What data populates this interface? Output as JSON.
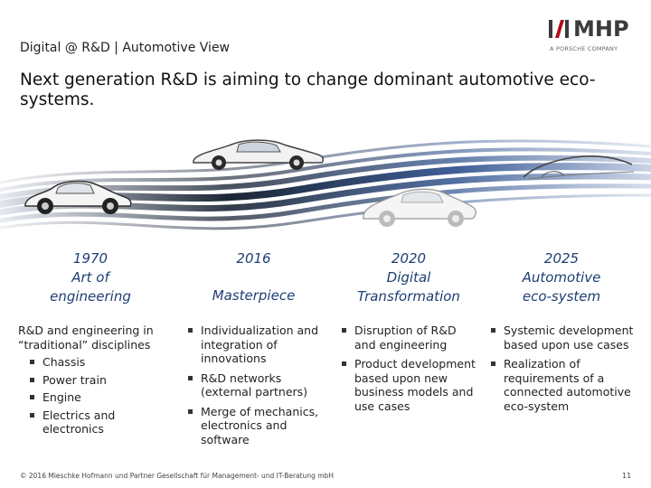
{
  "header": {
    "subtitle": "Digital @ R&D | Automotive View",
    "logo_text": "MHP",
    "logo_tagline": "A PORSCHE COMPANY"
  },
  "headline": "Next generation R&D is aiming to change dominant automotive eco-systems.",
  "columns": [
    {
      "title_lines": [
        "1970",
        "Art of",
        "engineering"
      ],
      "intro": "R&D and engineering in “traditional” disciplines",
      "bullets": [
        "Chassis",
        "Power train",
        "Engine",
        "Electrics and electronics"
      ]
    },
    {
      "title_lines": [
        "2016",
        "",
        "Masterpiece"
      ],
      "bullets": [
        "Individualization and integration of innovations",
        "R&D networks (external partners)",
        "Merge of mechanics, electronics and software"
      ]
    },
    {
      "title_lines": [
        "2020",
        "Digital",
        "Transformation"
      ],
      "bullets": [
        "Disruption of R&D and engineering",
        "Product development based upon new business models and use cases"
      ]
    },
    {
      "title_lines": [
        "2025",
        "Automotive",
        "eco-system"
      ],
      "bullets": [
        "Systemic development based upon use cases",
        "Realization of requirements of a connected automotive eco-system"
      ]
    }
  ],
  "footer": {
    "copyright": "© 2016 Mieschke Hofmann und Partner Gesellschaft für Management- und IT-Beratung mbH",
    "page_number": "11"
  },
  "colors": {
    "title_blue": "#1e3f73",
    "swoosh_dark": "#1b2535",
    "swoosh_blue": "#3f5f97",
    "swoosh_light": "#8aa3c9"
  },
  "icons": [
    "classic-car-icon",
    "modern-sports-car-icon",
    "future-sports-car-icon",
    "concept-car-outline-icon"
  ]
}
